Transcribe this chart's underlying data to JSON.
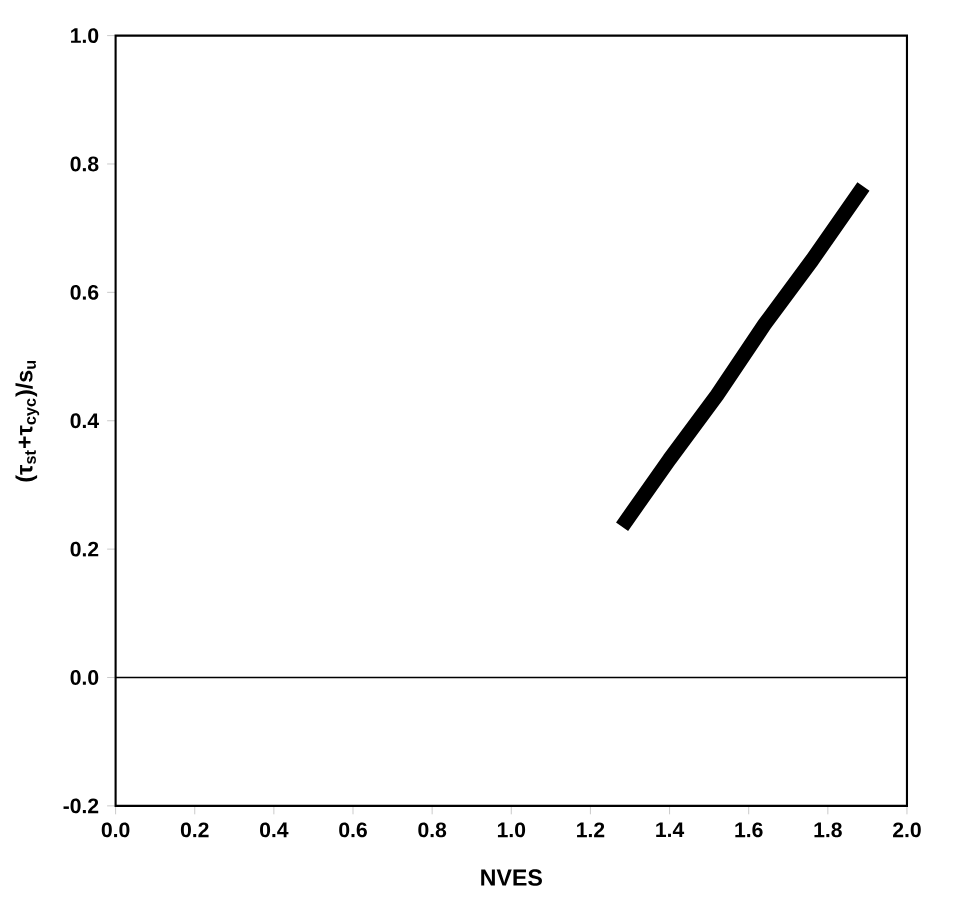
{
  "chart_data": {
    "type": "line",
    "xlabel": "NVES",
    "ylabel": "(τ$_{st}$+τ$_{cyc}$)/s$_{u}$",
    "x": [
      1.28,
      1.4,
      1.52,
      1.64,
      1.76,
      1.89
    ],
    "series": [
      {
        "color": "#000000",
        "values": [
          0.235,
          0.34,
          0.44,
          0.55,
          0.65,
          0.765
        ]
      }
    ],
    "xlim": [
      0.0,
      2.0
    ],
    "ylim": [
      -0.2,
      1.0
    ],
    "xticks": [
      {
        "value": 0,
        "label": "0.0"
      },
      {
        "value": 0.2,
        "label": "0.2"
      },
      {
        "value": 0.4,
        "label": "0.4"
      },
      {
        "value": 0.6,
        "label": "0.6"
      },
      {
        "value": 0.8,
        "label": "0.8"
      },
      {
        "value": 1,
        "label": "1.0"
      },
      {
        "value": 1.2,
        "label": "1.2"
      },
      {
        "value": 1.4,
        "label": "1.4"
      },
      {
        "value": 1.6,
        "label": "1.6"
      },
      {
        "value": 1.8,
        "label": "1.8"
      },
      {
        "value": 2,
        "label": "2.0"
      }
    ],
    "yticks": [
      {
        "value": -0.2,
        "label": "-0.2"
      },
      {
        "value": 0,
        "label": "0.0"
      },
      {
        "value": 0.2,
        "label": "0.2"
      },
      {
        "value": 0.4,
        "label": "0.4"
      },
      {
        "value": 0.6,
        "label": "0.6"
      },
      {
        "value": 0.8,
        "label": "0.8"
      },
      {
        "value": 1,
        "label": "1.0"
      }
    ],
    "ref_lines": [
      {
        "axis": "y",
        "value": 0,
        "color": "#000000"
      }
    ],
    "grid": false,
    "marker": "none",
    "line_style": "solid"
  }
}
